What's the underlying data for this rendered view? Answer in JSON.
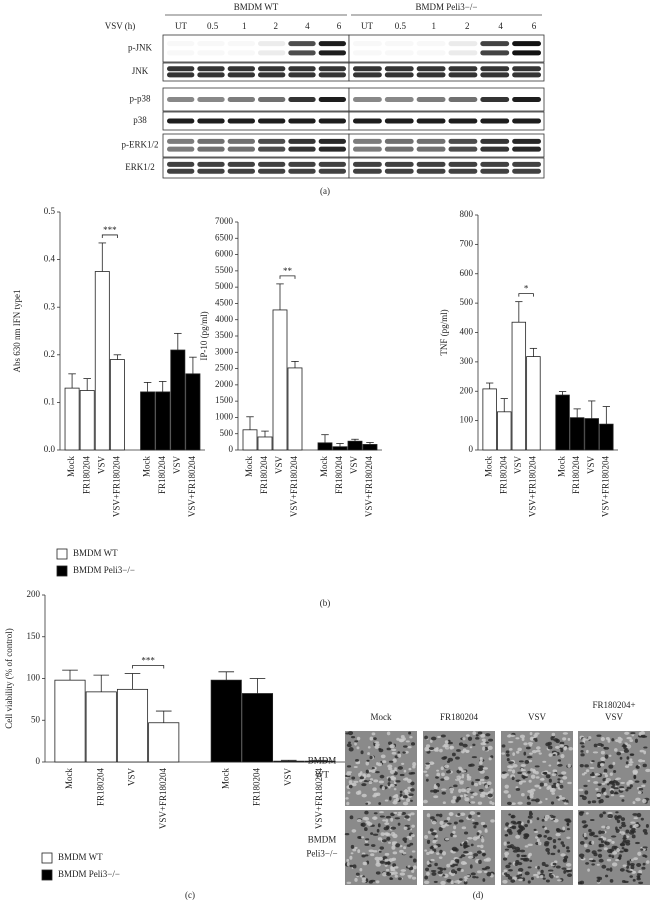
{
  "blot": {
    "groups": [
      "BMDM WT",
      "BMDM Peli3−/−"
    ],
    "time_label": "VSV (h)",
    "times": [
      "UT",
      "0.5",
      "1",
      "2",
      "4",
      "6"
    ],
    "rows": [
      "p-JNK",
      "JNK",
      "p-p38",
      "p38",
      "p-ERK1/2",
      "ERK1/2"
    ]
  },
  "chart_data": [
    {
      "type": "bar",
      "y_label": "Abs 630 nm IFN type1",
      "categories": [
        "Mock",
        "FR180204",
        "VSV",
        "VSV+FR180204"
      ],
      "series": [
        {
          "name": "BMDM WT",
          "color": "#ffffff",
          "values": [
            0.13,
            0.125,
            0.375,
            0.19
          ],
          "errors": [
            0.03,
            0.025,
            0.06,
            0.01
          ]
        },
        {
          "name": "BMDM Peli3−/−",
          "color": "#000000",
          "values": [
            0.122,
            0.122,
            0.21,
            0.16
          ],
          "errors": [
            0.02,
            0.022,
            0.035,
            0.035
          ]
        }
      ],
      "ylim": [
        0,
        0.5
      ],
      "yticks": [
        {
          "value": 0,
          "label": "0.0"
        },
        0.1,
        0.2,
        0.3,
        0.4,
        0.5
      ],
      "annotation": "***"
    },
    {
      "type": "bar",
      "y_label": "IP-10 (pg/ml)",
      "categories": [
        "Mock",
        "FR180204",
        "VSV",
        "VSV+FR180204"
      ],
      "series": [
        {
          "color": "#ffffff",
          "values": [
            620,
            400,
            4300,
            2520
          ],
          "errors": [
            400,
            180,
            800,
            200
          ]
        },
        {
          "color": "#000000",
          "values": [
            220,
            100,
            270,
            170
          ],
          "errors": [
            250,
            100,
            60,
            60
          ]
        }
      ],
      "ylim": [
        0,
        7000
      ],
      "yticks": [
        0,
        500,
        1000,
        1500,
        2000,
        2500,
        3000,
        3500,
        4000,
        4500,
        5000,
        5500,
        6000,
        6500,
        7000
      ],
      "annotation": "**"
    },
    {
      "type": "bar",
      "y_label": "TNF (pg/ml)",
      "categories": [
        "Mock",
        "FR180204",
        "VSV",
        "VSV+FR180204"
      ],
      "series": [
        {
          "color": "#ffffff",
          "values": [
            208,
            130,
            435,
            318
          ],
          "errors": [
            20,
            45,
            70,
            28
          ]
        },
        {
          "color": "#000000",
          "values": [
            187,
            110,
            107,
            88
          ],
          "errors": [
            12,
            30,
            60,
            60
          ]
        }
      ],
      "ylim": [
        0,
        800
      ],
      "yticks": [
        0,
        100,
        200,
        300,
        400,
        500,
        600,
        700,
        800
      ],
      "annotation": "*"
    },
    {
      "type": "bar",
      "y_label": "Cell viability (% of control)",
      "categories": [
        "Mock",
        "FR180204",
        "VSV",
        "VSV+FR180204"
      ],
      "series": [
        {
          "name": "BMDM WT",
          "color": "#ffffff",
          "values": [
            98,
            84,
            87,
            47
          ],
          "errors": [
            12,
            20,
            19,
            14
          ]
        },
        {
          "name": "BMDM Peli3−/−",
          "color": "#000000",
          "values": [
            98,
            82,
            1,
            1
          ],
          "errors": [
            10,
            18,
            1,
            1
          ]
        }
      ],
      "ylim": [
        0,
        200
      ],
      "yticks": [
        0,
        50,
        100,
        150,
        200
      ],
      "annotation": "***"
    }
  ],
  "micrographs": {
    "columns": [
      [
        "Mock"
      ],
      [
        "FR180204"
      ],
      [
        "VSV"
      ],
      [
        "FR180204+",
        "VSV"
      ]
    ],
    "rows": [
      [
        "BMDM",
        "WT"
      ],
      [
        "BMDM",
        "Peli3−/−"
      ]
    ]
  },
  "panel_labels": [
    "(a)",
    "(b)",
    "(c)",
    "(d)"
  ]
}
